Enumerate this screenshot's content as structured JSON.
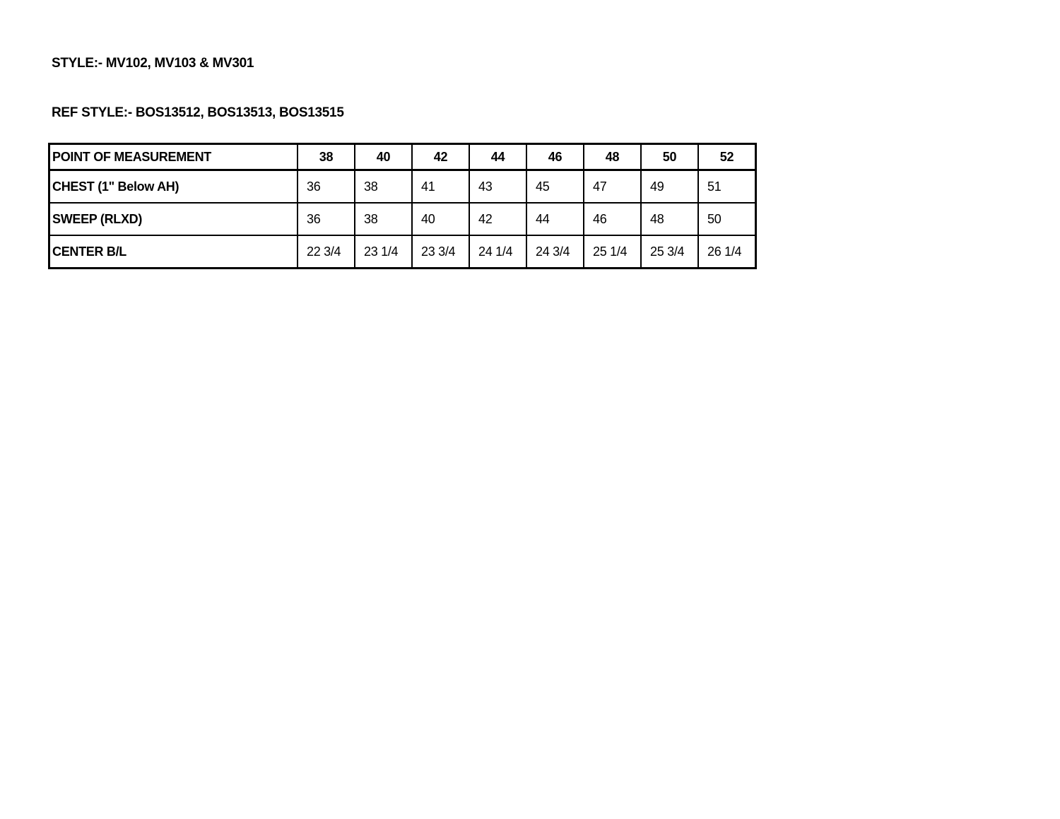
{
  "style_line": "STYLE:- MV102, MV103 & MV301",
  "ref_style_line": "REF STYLE:- BOS13512, BOS13513, BOS13515",
  "table": {
    "header": [
      "POINT OF MEASUREMENT",
      "38",
      "40",
      "42",
      "44",
      "46",
      "48",
      "50",
      "52"
    ],
    "rows": [
      [
        "CHEST (1\" Below AH)",
        "36",
        "38",
        "41",
        "43",
        "45",
        "47",
        "49",
        "51"
      ],
      [
        "SWEEP (RLXD)",
        "36",
        "38",
        "40",
        "42",
        "44",
        "46",
        "48",
        "50"
      ],
      [
        "CENTER B/L",
        "22 3/4",
        "23 1/4",
        "23 3/4",
        "24 1/4",
        "24 3/4",
        "25 1/4",
        "25 3/4",
        "26 1/4"
      ]
    ]
  }
}
